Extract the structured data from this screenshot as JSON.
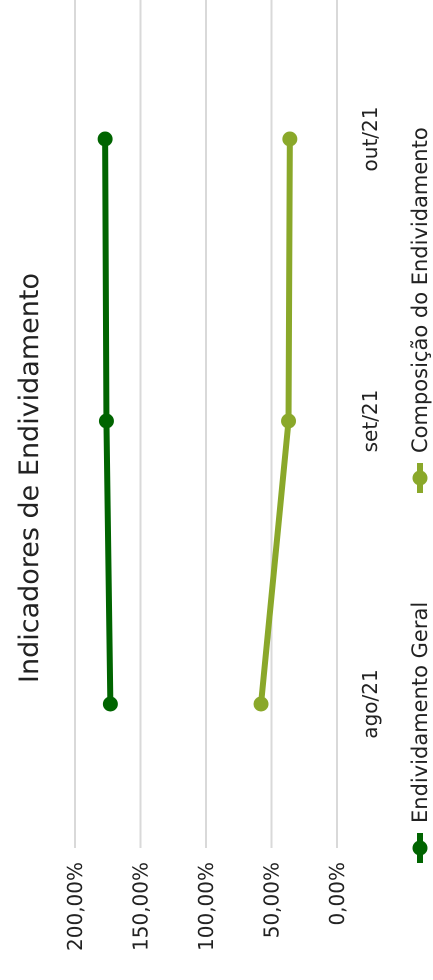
{
  "chart_data": {
    "type": "line",
    "title": "Indicadores de Endividamento",
    "categories": [
      "ago/21",
      "set/21",
      "out/21"
    ],
    "yticks": [
      "0,00%",
      "50,00%",
      "100,00%",
      "150,00%",
      "200,00%"
    ],
    "ylim": [
      0,
      200
    ],
    "grid": true,
    "legend_position": "bottom",
    "series": [
      {
        "name": "Endividamento Geral",
        "color": "#006400",
        "values": [
          173,
          176,
          177
        ]
      },
      {
        "name": "Composição do Endividamento",
        "color": "#8aa82a",
        "values": [
          58,
          37,
          36
        ]
      }
    ]
  }
}
